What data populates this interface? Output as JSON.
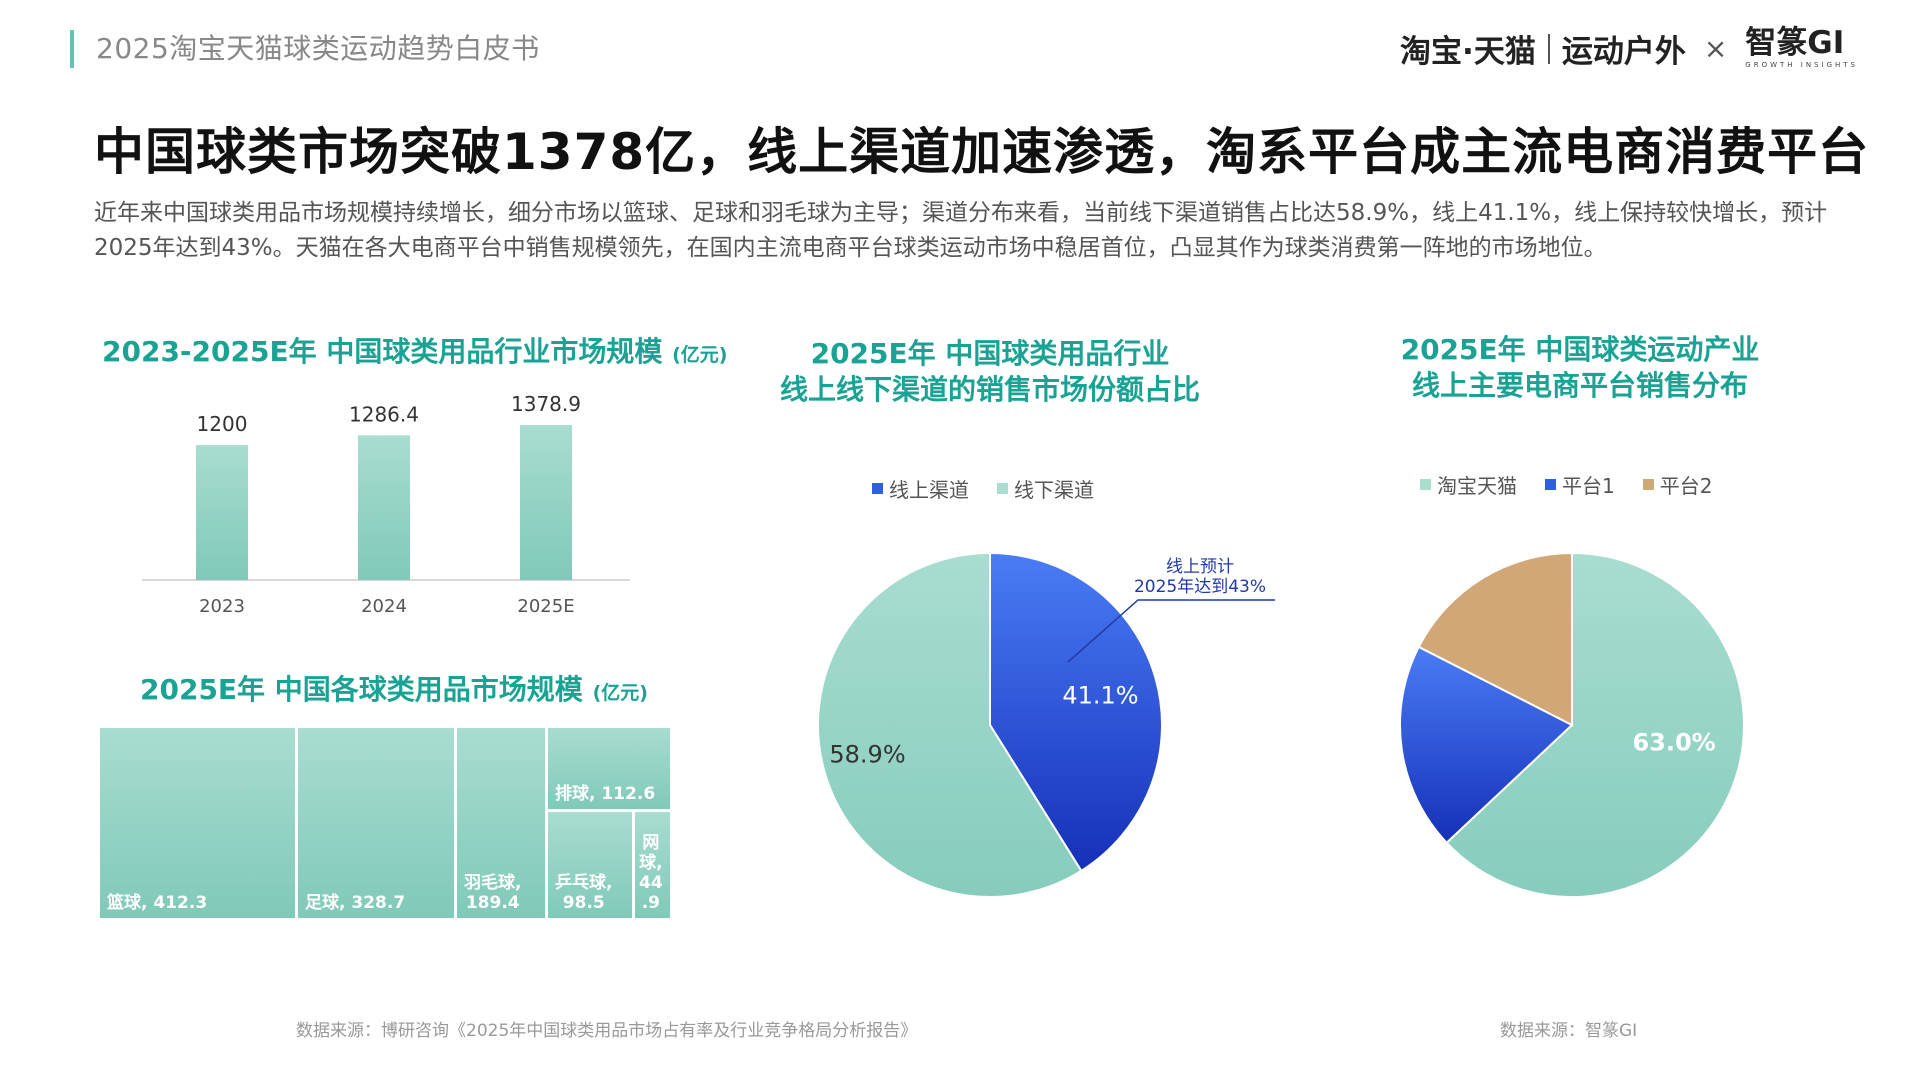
{
  "header": {
    "report_title": "2025淘宝天猫球类运动趋势白皮书",
    "brand_taobao": "淘宝·天猫",
    "brand_sports": "运动户外",
    "brand_x": "×",
    "brand_gi": "智篆GI",
    "brand_gi_sub": "GROWTH  INSIGHTS"
  },
  "main_title": "中国球类市场突破1378亿，线上渠道加速渗透，淘系平台成主流电商消费平台",
  "intro": "近年来中国球类用品市场规模持续增长，细分市场以篮球、足球和羽毛球为主导；渠道分布来看，当前线下渠道销售占比达58.9%，线上41.1%，线上保持较快增长，预计2025年达到43%。天猫在各大电商平台中销售规模领先，在国内主流电商平台球类运动市场中稳居首位，凸显其作为球类消费第一阵地的市场地位。",
  "colors": {
    "accent": "#1aa394",
    "teal_light": "#a8ddd0",
    "teal_dark": "#80c9b9",
    "blue": "#2e5fe0",
    "tan": "#d2a777"
  },
  "chart_data": [
    {
      "type": "bar",
      "title": "2023-2025E年 中国球类用品行业市场规模",
      "unit": "(亿元)",
      "categories": [
        "2023",
        "2024",
        "2025E"
      ],
      "values": [
        1200,
        1286.4,
        1378.9
      ],
      "value_labels": [
        "1200",
        "1286.4",
        "1378.9"
      ],
      "grid": false
    },
    {
      "type": "treemap",
      "title": "2025E年 中国各球类用品市场规模",
      "unit": "(亿元)",
      "items": [
        {
          "name": "篮球",
          "value": 412.3,
          "label": "篮球, 412.3"
        },
        {
          "name": "足球",
          "value": 328.7,
          "label": "足球, 328.7"
        },
        {
          "name": "羽毛球",
          "value": 189.4,
          "label_l1": "羽毛球,",
          "label_l2": "189.4"
        },
        {
          "name": "排球",
          "value": 112.6,
          "label": "排球, 112.6"
        },
        {
          "name": "乒乓球",
          "value": 98.5,
          "label_l1": "乒乓球,",
          "label_l2": "98.5"
        },
        {
          "name": "网球",
          "value": 44.9,
          "label_l1": "网",
          "label_l2": "球,",
          "label_l3": "44",
          "label_l4": ".9"
        }
      ]
    },
    {
      "type": "pie",
      "title_l1": "2025E年 中国球类用品行业",
      "title_l2": "线上线下渠道的销售市场份额占比",
      "series": [
        {
          "name": "线上渠道",
          "value": 41.1,
          "label": "41.1%",
          "color": "#2e5fe0"
        },
        {
          "name": "线下渠道",
          "value": 58.9,
          "label": "58.9%",
          "color": "#a8ddd0"
        }
      ],
      "annotation_l1": "线上预计",
      "annotation_l2": "2025年达到43%",
      "legend_position": "top"
    },
    {
      "type": "pie",
      "title_l1": "2025E年 中国球类运动产业",
      "title_l2": "线上主要电商平台销售分布",
      "series": [
        {
          "name": "淘宝天猫",
          "value": 63.0,
          "label": "63.0%",
          "color": "#a8ddd0"
        },
        {
          "name": "平台1",
          "value": 19.5,
          "label": "",
          "color": "#2e5fe0"
        },
        {
          "name": "平台2",
          "value": 17.5,
          "label": "",
          "color": "#d2a777"
        }
      ],
      "legend_position": "top"
    }
  ],
  "sources": {
    "left": "数据来源：博研咨询《2025年中国球类用品市场占有率及行业竞争格局分析报告》",
    "right": "数据来源：智篆GI"
  }
}
